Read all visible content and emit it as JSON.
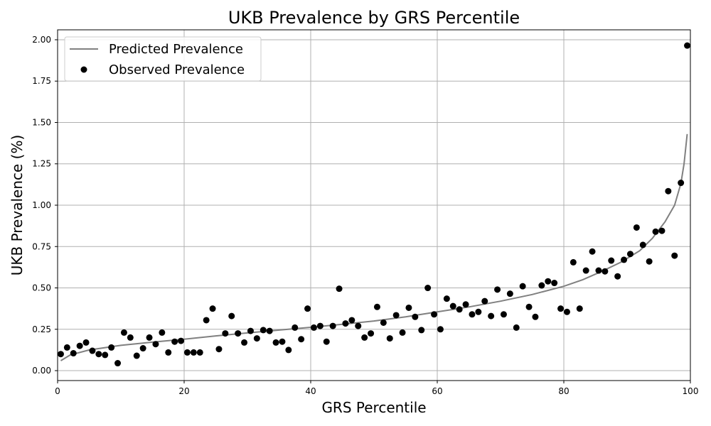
{
  "chart_data": {
    "type": "scatter",
    "title": "UKB Prevalence by GRS Percentile",
    "xlabel": "GRS Percentile",
    "ylabel": "UKB Prevalence (%)",
    "xlim": [
      0,
      100
    ],
    "ylim": [
      -0.06,
      2.06
    ],
    "xticks": [
      0,
      20,
      40,
      60,
      80,
      100
    ],
    "yticks": [
      0.0,
      0.25,
      0.5,
      0.75,
      1.0,
      1.25,
      1.5,
      1.75,
      2.0
    ],
    "xtick_labels": [
      "0",
      "20",
      "40",
      "60",
      "80",
      "100"
    ],
    "ytick_labels": [
      "0.00",
      "0.25",
      "0.50",
      "0.75",
      "1.00",
      "1.25",
      "1.50",
      "1.75",
      "2.00"
    ],
    "grid": true,
    "legend_position": "top-left",
    "colors": {
      "line": "#808080",
      "points": "#000000",
      "grid": "#b0b0b0"
    },
    "series": [
      {
        "name": "Predicted Prevalence",
        "kind": "line",
        "x": [
          0.5,
          2,
          5,
          10,
          15,
          20,
          25,
          30,
          35,
          40,
          45,
          50,
          55,
          60,
          65,
          70,
          75,
          80,
          83,
          86,
          89,
          92,
          94,
          96,
          97.5,
          98.5,
          99,
          99.5
        ],
        "y": [
          0.06,
          0.095,
          0.125,
          0.153,
          0.172,
          0.19,
          0.21,
          0.228,
          0.245,
          0.262,
          0.28,
          0.3,
          0.325,
          0.355,
          0.385,
          0.42,
          0.46,
          0.51,
          0.55,
          0.6,
          0.655,
          0.725,
          0.8,
          0.9,
          1.0,
          1.13,
          1.25,
          1.43
        ]
      },
      {
        "name": "Observed Prevalence",
        "kind": "scatter",
        "x": [
          0.5,
          1.5,
          2.5,
          3.5,
          4.5,
          5.5,
          6.5,
          7.5,
          8.5,
          9.5,
          10.5,
          11.5,
          12.5,
          13.5,
          14.5,
          15.5,
          16.5,
          17.5,
          18.5,
          19.5,
          20.5,
          21.5,
          22.5,
          23.5,
          24.5,
          25.5,
          26.5,
          27.5,
          28.5,
          29.5,
          30.5,
          31.5,
          32.5,
          33.5,
          34.5,
          35.5,
          36.5,
          37.5,
          38.5,
          39.5,
          40.5,
          41.5,
          42.5,
          43.5,
          44.5,
          45.5,
          46.5,
          47.5,
          48.5,
          49.5,
          50.5,
          51.5,
          52.5,
          53.5,
          54.5,
          55.5,
          56.5,
          57.5,
          58.5,
          59.5,
          60.5,
          61.5,
          62.5,
          63.5,
          64.5,
          65.5,
          66.5,
          67.5,
          68.5,
          69.5,
          70.5,
          71.5,
          72.5,
          73.5,
          74.5,
          75.5,
          76.5,
          77.5,
          78.5,
          79.5,
          80.5,
          81.5,
          82.5,
          83.5,
          84.5,
          85.5,
          86.5,
          87.5,
          88.5,
          89.5,
          90.5,
          91.5,
          92.5,
          93.5,
          94.5,
          95.5,
          96.5,
          97.5,
          98.5,
          99.5
        ],
        "y": [
          0.1,
          0.14,
          0.105,
          0.15,
          0.17,
          0.12,
          0.1,
          0.095,
          0.14,
          0.045,
          0.23,
          0.2,
          0.09,
          0.135,
          0.2,
          0.16,
          0.23,
          0.11,
          0.175,
          0.18,
          0.11,
          0.11,
          0.11,
          0.305,
          0.375,
          0.13,
          0.225,
          0.33,
          0.225,
          0.17,
          0.24,
          0.195,
          0.245,
          0.24,
          0.17,
          0.175,
          0.125,
          0.26,
          0.19,
          0.375,
          0.26,
          0.27,
          0.175,
          0.27,
          0.495,
          0.285,
          0.305,
          0.27,
          0.2,
          0.225,
          0.385,
          0.29,
          0.195,
          0.335,
          0.23,
          0.38,
          0.325,
          0.245,
          0.5,
          0.34,
          0.25,
          0.435,
          0.39,
          0.37,
          0.4,
          0.34,
          0.355,
          0.42,
          0.33,
          0.49,
          0.34,
          0.465,
          0.26,
          0.51,
          0.385,
          0.325,
          0.515,
          0.54,
          0.53,
          0.375,
          0.355,
          0.655,
          0.375,
          0.605,
          0.72,
          0.605,
          0.6,
          0.665,
          0.57,
          0.67,
          0.705,
          0.865,
          0.76,
          0.66,
          0.84,
          0.845,
          1.085,
          0.695,
          1.135,
          1.965
        ]
      }
    ]
  }
}
